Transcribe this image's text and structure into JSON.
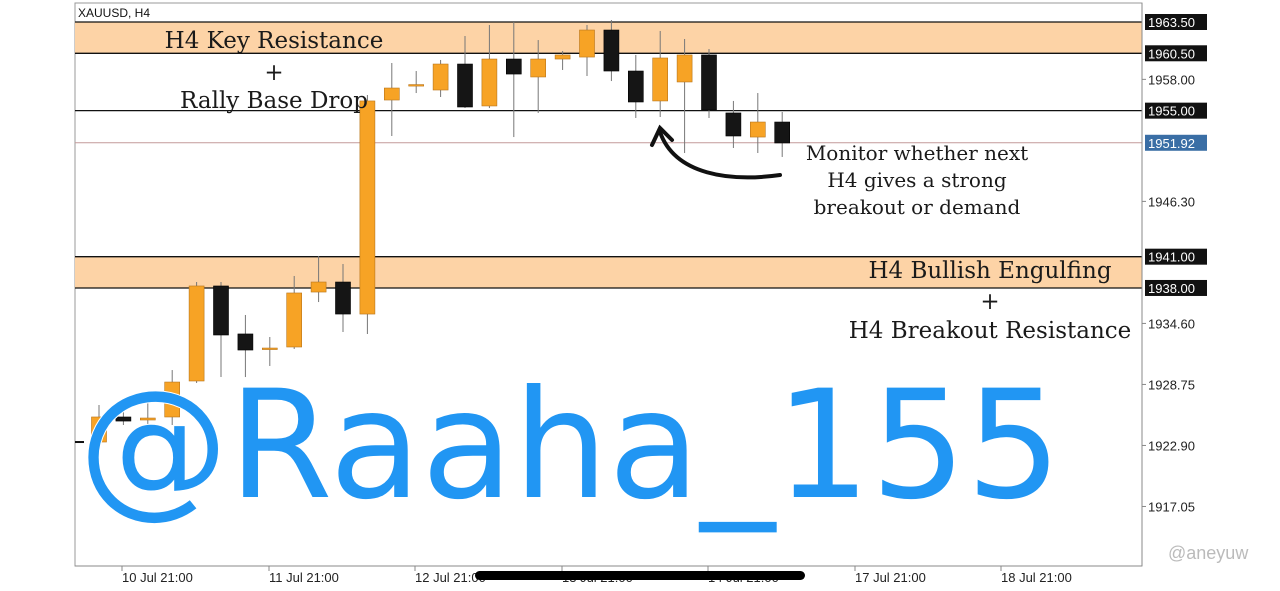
{
  "chart": {
    "symbol_label": "XAUUSD, H4",
    "colors": {
      "bull": "#f7a325",
      "bear": "#151515",
      "zone": "#fdd3a6",
      "bid_line": "#c49a9a",
      "bid_tag": "#3a6ea5",
      "watermark": "#2196f3"
    }
  },
  "chart_data": {
    "type": "candlestick",
    "ylim": [
      1912.5,
      1965.5
    ],
    "y_ticks": [
      "1958.00",
      "1946.30",
      "1934.60",
      "1928.75",
      "1922.90",
      "1917.05"
    ],
    "y_tick_values": [
      1958.0,
      1946.3,
      1934.6,
      1928.75,
      1922.9,
      1917.05
    ],
    "x_ticks": [
      "10 Jul 21:00",
      "11 Jul 21:00",
      "12 Jul 21:00",
      "13 Jul 21:00",
      "14 Jul 21:00",
      "17 Jul 21:00",
      "18 Jul 21:00"
    ],
    "candles": [
      {
        "o": 1923.23,
        "h": 1926.78,
        "l": 1920.74,
        "c": 1925.63
      },
      {
        "o": 1925.63,
        "h": 1926.49,
        "l": 1924.86,
        "c": 1925.24
      },
      {
        "o": 1925.34,
        "h": 1927.93,
        "l": 1924.57,
        "c": 1925.53
      },
      {
        "o": 1925.63,
        "h": 1930.13,
        "l": 1924.86,
        "c": 1928.98
      },
      {
        "o": 1929.08,
        "h": 1938.57,
        "l": 1928.89,
        "c": 1938.19
      },
      {
        "o": 1938.19,
        "h": 1938.57,
        "l": 1929.46,
        "c": 1933.49
      },
      {
        "o": 1933.59,
        "h": 1935.41,
        "l": 1929.46,
        "c": 1932.05
      },
      {
        "o": 1932.15,
        "h": 1933.3,
        "l": 1930.52,
        "c": 1932.24
      },
      {
        "o": 1932.34,
        "h": 1939.15,
        "l": 1932.15,
        "c": 1937.52
      },
      {
        "o": 1937.61,
        "h": 1941.07,
        "l": 1936.65,
        "c": 1938.57
      },
      {
        "o": 1938.57,
        "h": 1940.3,
        "l": 1933.78,
        "c": 1935.5
      },
      {
        "o": 1935.5,
        "h": 1956.5,
        "l": 1933.59,
        "c": 1955.93
      },
      {
        "o": 1956.02,
        "h": 1959.57,
        "l": 1952.57,
        "c": 1957.17
      },
      {
        "o": 1957.46,
        "h": 1958.8,
        "l": 1956.69,
        "c": 1957.5
      },
      {
        "o": 1956.98,
        "h": 1959.86,
        "l": 1956.31,
        "c": 1959.47
      },
      {
        "o": 1959.47,
        "h": 1962.16,
        "l": 1955.25,
        "c": 1955.35
      },
      {
        "o": 1955.45,
        "h": 1963.21,
        "l": 1955.25,
        "c": 1959.95
      },
      {
        "o": 1959.95,
        "h": 1963.5,
        "l": 1952.47,
        "c": 1958.51
      },
      {
        "o": 1958.23,
        "h": 1961.77,
        "l": 1954.78,
        "c": 1959.95
      },
      {
        "o": 1959.95,
        "h": 1960.72,
        "l": 1958.9,
        "c": 1960.34
      },
      {
        "o": 1960.14,
        "h": 1963.21,
        "l": 1958.32,
        "c": 1962.73
      },
      {
        "o": 1962.73,
        "h": 1963.69,
        "l": 1957.84,
        "c": 1958.8
      },
      {
        "o": 1958.8,
        "h": 1960.34,
        "l": 1954.3,
        "c": 1955.83
      },
      {
        "o": 1955.93,
        "h": 1962.64,
        "l": 1954.39,
        "c": 1960.05
      },
      {
        "o": 1957.75,
        "h": 1961.87,
        "l": 1950.94,
        "c": 1960.34
      },
      {
        "o": 1960.34,
        "h": 1960.91,
        "l": 1954.3,
        "c": 1955.06
      },
      {
        "o": 1954.78,
        "h": 1955.93,
        "l": 1951.42,
        "c": 1952.57
      },
      {
        "o": 1952.47,
        "h": 1956.69,
        "l": 1950.94,
        "c": 1953.91
      },
      {
        "o": 1953.91,
        "h": 1954.87,
        "l": 1950.56,
        "c": 1951.9
      }
    ],
    "levels": [
      {
        "value": 1963.5,
        "label": "1963.50"
      },
      {
        "value": 1960.5,
        "label": "1960.50"
      },
      {
        "value": 1955.0,
        "label": "1955.00"
      },
      {
        "value": 1941.0,
        "label": "1941.00"
      },
      {
        "value": 1938.0,
        "label": "1938.00"
      }
    ],
    "zones": [
      [
        1960.5,
        1963.5
      ],
      [
        1938.0,
        1941.0
      ]
    ],
    "bid": {
      "value": 1951.92,
      "label": "1951.92"
    }
  },
  "annotations": {
    "top_zone": [
      "H4 Key Resistance",
      "+",
      "Rally Base Drop"
    ],
    "bottom_zone": [
      "H4 Bullish Engulfing",
      "+",
      "H4 Breakout Resistance"
    ],
    "monitor": [
      "Monitor whether next",
      "H4 gives a strong",
      "breakout or demand"
    ]
  },
  "watermark": {
    "main": "@Raaha_155",
    "corner": "@aneyuw"
  }
}
